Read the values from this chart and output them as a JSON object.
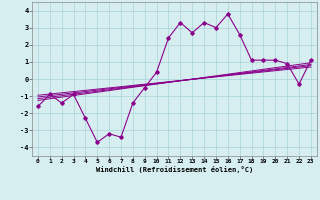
{
  "xlabel": "Windchill (Refroidissement éolien,°C)",
  "background_color": "#d6eef0",
  "grid_color": "#b0d8dc",
  "line_color": "#8b008b",
  "xlim": [
    -0.5,
    23.5
  ],
  "ylim": [
    -4.5,
    4.5
  ],
  "xticks": [
    0,
    1,
    2,
    3,
    4,
    5,
    6,
    7,
    8,
    9,
    10,
    11,
    12,
    13,
    14,
    15,
    16,
    17,
    18,
    19,
    20,
    21,
    22,
    23
  ],
  "yticks": [
    -4,
    -3,
    -2,
    -1,
    0,
    1,
    2,
    3,
    4
  ],
  "main_series_x": [
    0,
    1,
    2,
    3,
    4,
    5,
    6,
    7,
    8,
    9,
    10,
    11,
    12,
    13,
    14,
    15,
    16,
    17,
    18,
    19,
    20,
    21,
    22,
    23
  ],
  "main_series_y": [
    -1.6,
    -0.9,
    -1.4,
    -0.9,
    -2.3,
    -3.7,
    -3.2,
    -3.4,
    -1.4,
    -0.5,
    0.4,
    2.4,
    3.3,
    2.7,
    3.3,
    3.0,
    3.8,
    2.6,
    1.1,
    1.1,
    1.1,
    0.9,
    -0.3,
    1.1
  ],
  "ref_lines": [
    {
      "x0": 0,
      "y0": -1.25,
      "x1": 23,
      "y1": 0.95
    },
    {
      "x0": 0,
      "y0": -1.15,
      "x1": 23,
      "y1": 0.85
    },
    {
      "x0": 0,
      "y0": -1.05,
      "x1": 23,
      "y1": 0.78
    },
    {
      "x0": 0,
      "y0": -0.95,
      "x1": 23,
      "y1": 0.7
    }
  ]
}
